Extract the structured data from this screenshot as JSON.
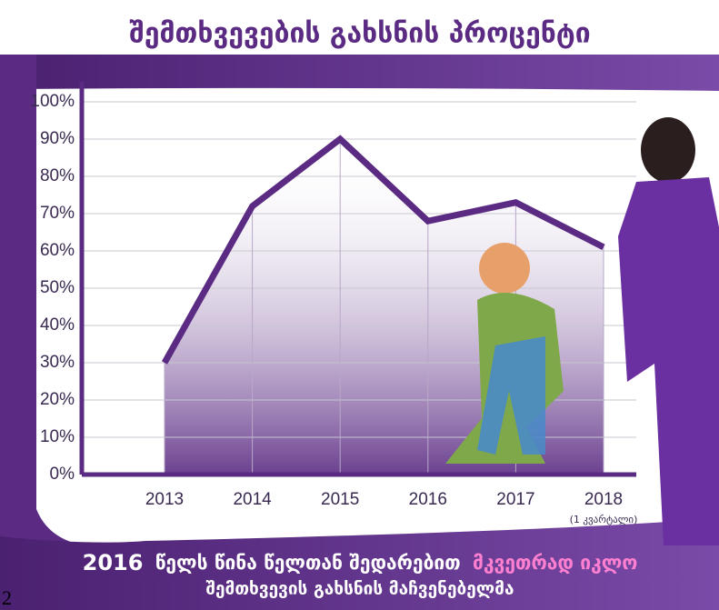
{
  "chart_data": {
    "type": "line",
    "title": "შემთხვევების გახსნის პროცენტი",
    "categories": [
      "2013",
      "2014",
      "2015",
      "2016",
      "2017",
      "2018"
    ],
    "category_notes": [
      null,
      null,
      null,
      null,
      null,
      "(1 კვარტალი)"
    ],
    "series": [
      {
        "color": "#5b2b83",
        "values": [
          30,
          72,
          90,
          68,
          73,
          61
        ]
      }
    ],
    "ylim": [
      0,
      100
    ],
    "yticks": [
      {
        "value": 0,
        "label": "0%"
      },
      {
        "value": 10,
        "label": "10%"
      },
      {
        "value": 20,
        "label": "20%"
      },
      {
        "value": 30,
        "label": "30%"
      },
      {
        "value": 40,
        "label": "40%"
      },
      {
        "value": 50,
        "label": "50%"
      },
      {
        "value": 60,
        "label": "60%"
      },
      {
        "value": 70,
        "label": "70%"
      },
      {
        "value": 80,
        "label": "80%"
      },
      {
        "value": 90,
        "label": "90%"
      },
      {
        "value": 100,
        "label": "100%"
      }
    ],
    "grid": true,
    "annotation_parts": [
      "2016",
      "წელს წინა წელთან შედარებით",
      "მკვეთრად იკლო",
      "შემთხვევის გახსნის მაჩვენებელმა"
    ],
    "highlight_color": "#ff7fd0",
    "page_marker": "2"
  }
}
